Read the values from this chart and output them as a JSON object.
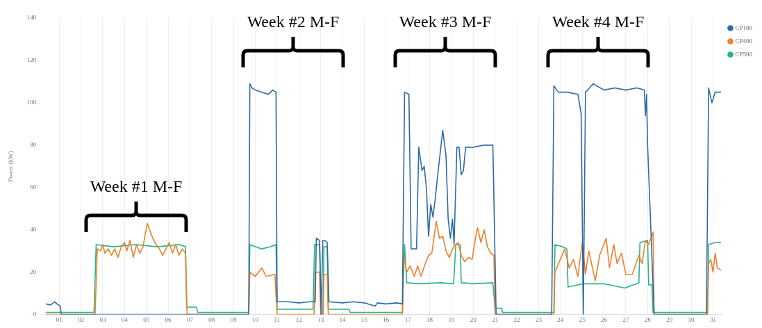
{
  "chart_data": {
    "type": "line",
    "ylabel": "Power (kW)",
    "xlim": [
      0.4,
      31.4
    ],
    "xticks": [
      {
        "value": 1,
        "label": "01"
      },
      {
        "value": 2,
        "label": "02"
      },
      {
        "value": 3,
        "label": "03"
      },
      {
        "value": 4,
        "label": "04"
      },
      {
        "value": 5,
        "label": "05"
      },
      {
        "value": 6,
        "label": "06"
      },
      {
        "value": 7,
        "label": "07"
      },
      {
        "value": 8,
        "label": "08"
      },
      {
        "value": 9,
        "label": "09"
      },
      {
        "value": 10,
        "label": "10"
      },
      {
        "value": 11,
        "label": "11"
      },
      {
        "value": 12,
        "label": "12"
      },
      {
        "value": 13,
        "label": "13"
      },
      {
        "value": 14,
        "label": "14"
      },
      {
        "value": 15,
        "label": "15"
      },
      {
        "value": 16,
        "label": "16"
      },
      {
        "value": 17,
        "label": "17"
      },
      {
        "value": 18,
        "label": "18"
      },
      {
        "value": 19,
        "label": "19"
      },
      {
        "value": 20,
        "label": "20"
      },
      {
        "value": 21,
        "label": "21"
      },
      {
        "value": 22,
        "label": "22"
      },
      {
        "value": 23,
        "label": "23"
      },
      {
        "value": 24,
        "label": "24"
      },
      {
        "value": 25,
        "label": "25"
      },
      {
        "value": 26,
        "label": "26"
      },
      {
        "value": 27,
        "label": "27"
      },
      {
        "value": 28,
        "label": "28"
      },
      {
        "value": 29,
        "label": "29"
      },
      {
        "value": 30,
        "label": "30"
      },
      {
        "value": 31,
        "label": "31"
      }
    ],
    "ylim": [
      0,
      140
    ],
    "yticks": [
      0,
      20,
      40,
      60,
      80,
      100,
      120,
      140
    ],
    "grid": "x",
    "legend": "top right",
    "marker": "none",
    "line_style": "solid",
    "series": [
      {
        "name": "CP100",
        "color": "#2e6aa6",
        "x": [
          0.4,
          0.6,
          0.8,
          0.9,
          1.05,
          1.1,
          9.7,
          9.75,
          9.85,
          10.0,
          10.3,
          10.6,
          10.8,
          10.95,
          11.0,
          11.5,
          12.0,
          12.5,
          12.75,
          12.8,
          12.95,
          13.02,
          13.1,
          13.18,
          13.3,
          13.38,
          14.0,
          14.5,
          15.0,
          15.5,
          15.6,
          16.0,
          16.5,
          16.75,
          16.85,
          17.05,
          17.15,
          17.4,
          17.5,
          17.65,
          17.75,
          17.85,
          17.95,
          18.05,
          18.15,
          18.25,
          18.35,
          18.6,
          18.75,
          18.85,
          18.95,
          19.05,
          19.12,
          19.25,
          19.35,
          19.45,
          19.55,
          19.65,
          20.0,
          20.5,
          20.9,
          21.05,
          23.6,
          23.7,
          23.9,
          24.3,
          24.8,
          24.95,
          25.05,
          25.15,
          25.25,
          25.5,
          26.0,
          26.5,
          27.0,
          27.5,
          27.85,
          27.9,
          27.95,
          28.0,
          28.15,
          28.3,
          30.7,
          30.8,
          30.95,
          31.1,
          31.35
        ],
        "values": [
          5,
          4.5,
          6,
          5,
          4,
          0,
          0,
          109,
          107,
          106,
          105,
          104,
          106,
          105,
          6,
          6,
          5.5,
          6,
          6,
          36,
          35,
          0,
          35,
          35,
          34,
          6,
          5.5,
          6,
          5.5,
          4,
          5.5,
          5,
          5.5,
          5,
          105,
          104,
          31,
          31,
          79,
          68,
          70,
          60,
          37,
          52,
          46,
          54,
          64,
          87,
          75,
          45,
          36,
          45,
          33,
          79,
          79,
          66,
          68,
          79,
          79,
          80,
          80,
          0,
          0,
          108,
          105,
          105,
          104,
          95,
          0,
          105,
          106,
          109,
          106,
          107,
          106,
          107,
          106,
          94,
          104,
          80,
          40,
          0,
          0,
          107,
          100,
          105,
          105
        ]
      },
      {
        "name": "CP400",
        "color": "#f07f29",
        "x": [
          0.4,
          2.65,
          2.75,
          2.9,
          3.0,
          3.1,
          3.25,
          3.4,
          3.55,
          3.7,
          3.85,
          4.0,
          4.1,
          4.25,
          4.4,
          4.55,
          4.7,
          4.85,
          4.95,
          5.05,
          5.15,
          5.3,
          5.45,
          5.6,
          5.75,
          5.9,
          6.05,
          6.2,
          6.35,
          6.5,
          6.65,
          6.8,
          6.87,
          9.7,
          9.75,
          10.0,
          10.3,
          10.5,
          10.9,
          11.0,
          12.7,
          12.75,
          12.95,
          13.0,
          13.12,
          13.15,
          13.3,
          13.35,
          16.75,
          16.8,
          16.95,
          17.1,
          17.3,
          17.45,
          17.6,
          17.8,
          17.95,
          18.1,
          18.3,
          18.45,
          18.6,
          18.75,
          18.9,
          19.1,
          19.3,
          19.45,
          19.6,
          19.8,
          19.95,
          20.1,
          20.2,
          20.35,
          20.5,
          20.65,
          20.8,
          20.95,
          21.0,
          23.7,
          23.75,
          24.2,
          24.4,
          24.6,
          24.8,
          25.0,
          25.15,
          25.3,
          25.6,
          25.8,
          26.1,
          26.25,
          26.45,
          26.6,
          26.8,
          27.0,
          27.3,
          27.6,
          27.75,
          27.9,
          28.05,
          28.25,
          28.3,
          30.75,
          30.8,
          30.9,
          31.0,
          31.1,
          31.2,
          31.35
        ],
        "values": [
          0,
          0,
          31,
          30,
          33,
          29,
          31,
          28,
          31,
          27,
          32,
          34,
          30,
          35,
          27,
          33,
          29,
          32,
          38,
          43,
          40,
          36,
          33,
          31,
          28,
          31,
          34,
          29,
          33,
          28,
          31,
          29,
          0,
          0,
          20,
          18,
          22,
          18,
          19,
          0,
          0,
          20,
          20,
          0,
          0,
          19,
          19,
          0,
          0,
          29,
          20,
          23,
          18,
          23,
          18,
          24,
          28,
          29,
          44,
          36,
          37,
          30,
          27,
          32,
          34,
          28,
          25,
          27,
          26,
          36,
          41,
          34,
          40,
          32,
          29,
          28,
          0,
          0,
          20,
          31,
          22,
          26,
          18,
          34,
          19,
          30,
          16,
          28,
          36,
          22,
          33,
          24,
          29,
          19,
          19,
          28,
          24,
          35,
          33,
          39,
          0,
          0,
          24,
          26,
          20,
          29,
          22,
          21
        ]
      },
      {
        "name": "CP500",
        "color": "#25b586",
        "x": [
          0.4,
          2.6,
          2.7,
          3.5,
          4.5,
          5.5,
          6.5,
          6.8,
          6.85,
          7.3,
          7.35,
          9.7,
          9.75,
          10.0,
          10.3,
          10.7,
          10.95,
          11.0,
          12.65,
          12.72,
          12.95,
          13.02,
          13.1,
          13.15,
          13.3,
          13.35,
          14.3,
          14.35,
          16.75,
          16.85,
          16.95,
          17.5,
          18.5,
          19.1,
          19.2,
          19.4,
          19.45,
          20.0,
          20.9,
          21.0,
          21.3,
          21.35,
          23.7,
          23.75,
          24.1,
          24.3,
          24.35,
          25.0,
          26.0,
          26.5,
          26.95,
          27.6,
          27.65,
          28.0,
          28.05,
          28.2,
          28.25,
          30.75,
          30.8,
          31.1,
          31.35
        ],
        "values": [
          1,
          1,
          33,
          32,
          33,
          32,
          33,
          32,
          3.5,
          3.5,
          1,
          1,
          33,
          32,
          31,
          32,
          33,
          2.5,
          2.5,
          33,
          33,
          0,
          0,
          32,
          32,
          2.5,
          2.5,
          1,
          1,
          33,
          15,
          14.5,
          15,
          14.5,
          33,
          33,
          15,
          14.5,
          15,
          3,
          3,
          1,
          1,
          33,
          32,
          31,
          13,
          14.5,
          14.5,
          13.5,
          12.5,
          15,
          34,
          35,
          14,
          14,
          1,
          1,
          33,
          34,
          34
        ]
      }
    ],
    "annotations": [
      "Week #1 M-F",
      "Week #2 M-F",
      "Week #3 M-F",
      "Week #4 M-F"
    ]
  }
}
